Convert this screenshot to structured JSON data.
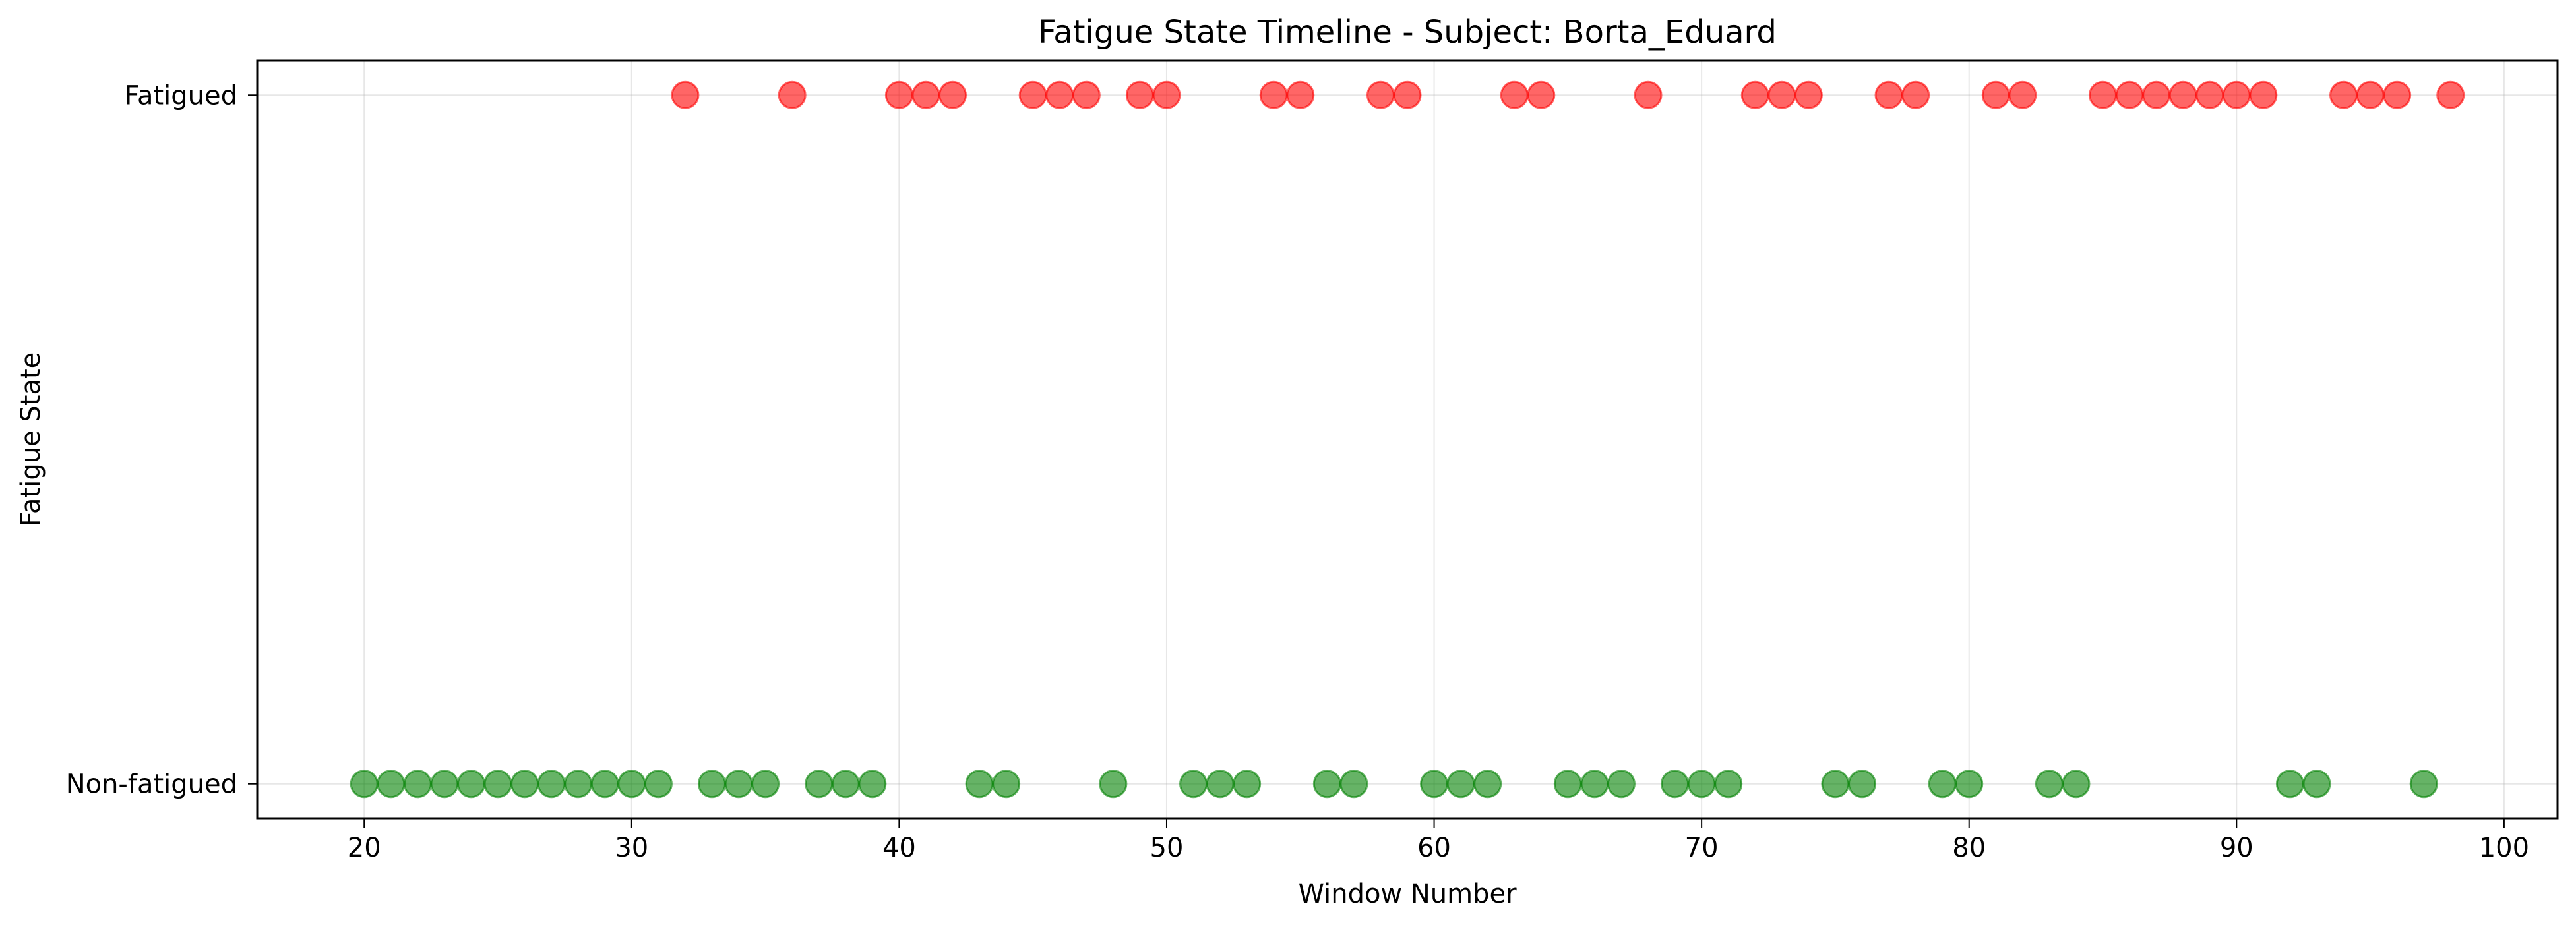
{
  "chart_data": {
    "type": "scatter",
    "title": "Fatigue State Timeline - Subject: Borta_Eduard",
    "xlabel": "Window Number",
    "ylabel": "Fatigue State",
    "xlim": [
      16,
      102
    ],
    "ylim": [
      -0.05,
      1.05
    ],
    "xticks": [
      20,
      30,
      40,
      50,
      60,
      70,
      80,
      90,
      100
    ],
    "yticks": [
      0,
      1
    ],
    "ytick_labels": [
      "Non-fatigued",
      "Fatigued"
    ],
    "grid": true,
    "series": [
      {
        "state": 1,
        "color": "#ff0000",
        "x": [
          32,
          36,
          40,
          41,
          42,
          45,
          46,
          47,
          49,
          50,
          54,
          55,
          58,
          59,
          63,
          64,
          68,
          72,
          73,
          74,
          77,
          78,
          81,
          82,
          85,
          86,
          87,
          88,
          89,
          90,
          91,
          94,
          95,
          96,
          98
        ]
      },
      {
        "state": 0,
        "color": "#008000",
        "x": [
          20,
          21,
          22,
          23,
          24,
          25,
          26,
          27,
          28,
          29,
          30,
          31,
          33,
          34,
          35,
          37,
          38,
          39,
          43,
          44,
          48,
          51,
          52,
          53,
          56,
          57,
          60,
          61,
          62,
          65,
          66,
          67,
          69,
          70,
          71,
          75,
          76,
          79,
          80,
          83,
          84,
          92,
          93,
          97
        ]
      }
    ]
  }
}
